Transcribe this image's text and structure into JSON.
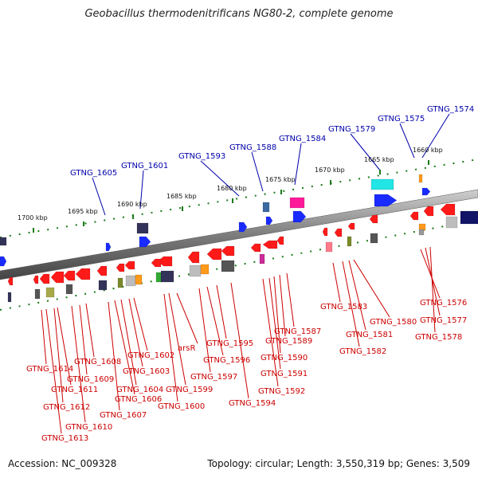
{
  "title": "Geobacillus thermodenitrificans NG80-2, complete genome",
  "footer": {
    "accession": "Accession: NC_009328",
    "summary": "Topology: circular; Length: 3,550,319 bp; Genes: 3,509"
  },
  "kbp_ticks": [
    "1660 kbp",
    "1665 kbp",
    "1670 kbp",
    "1675 kbp",
    "1680 kbp",
    "1685 kbp",
    "1690 kbp",
    "1695 kbp",
    "1700 kbp"
  ],
  "top_labels": [
    "GTNG_1574",
    "GTNG_1575",
    "GTNG_1579",
    "GTNG_1584",
    "GTNG_1588",
    "GTNG_1593",
    "GTNG_1601",
    "GTNG_1605"
  ],
  "bottom_labels": [
    "GTNG_1576",
    "GTNG_1577",
    "GTNG_1578",
    "GTNG_1580",
    "GTNG_1581",
    "GTNG_1582",
    "GTNG_1583",
    "GTNG_1587",
    "GTNG_1589",
    "GTNG_1590",
    "GTNG_1591",
    "GTNG_1592",
    "GTNG_1594",
    "GTNG_1595",
    "GTNG_1596",
    "GTNG_1597",
    "arsR",
    "GTNG_1599",
    "GTNG_1600",
    "GTNG_1602",
    "GTNG_1603",
    "GTNG_1604",
    "GTNG_1606",
    "GTNG_1607",
    "GTNG_1608",
    "GTNG_1609",
    "GTNG_1610",
    "GTNG_1611",
    "GTNG_1612",
    "GTNG_1613",
    "GTNG_1614"
  ],
  "colors": {
    "forward": "#1a2bff",
    "reverse": "#ff1a1a",
    "top_label": "#0000aa",
    "bottom_label": "#cc0000",
    "backbone": "#888888",
    "tick": "#1a7a1a"
  }
}
